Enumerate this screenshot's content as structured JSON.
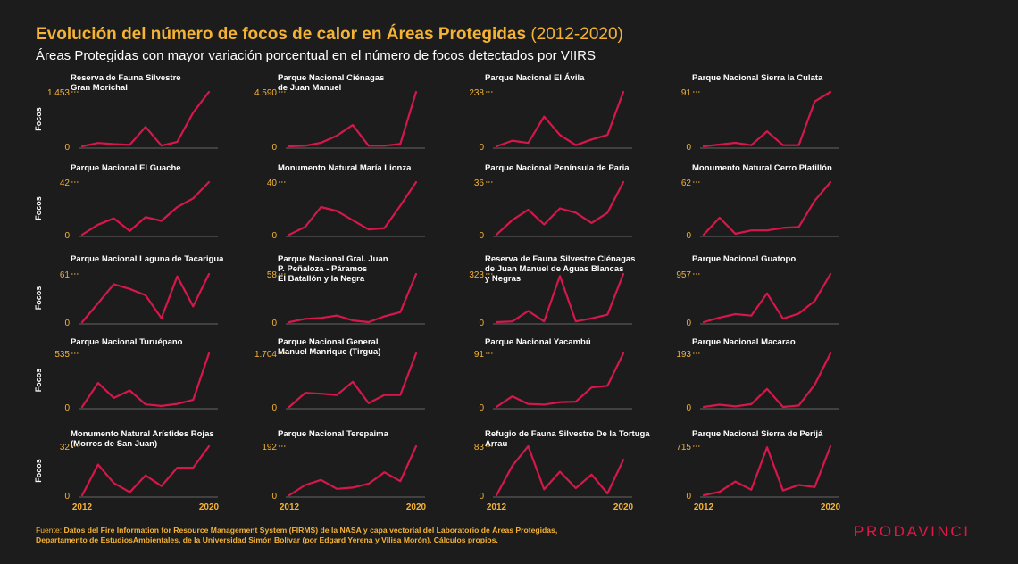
{
  "header": {
    "title_main": "Evolución del número de focos de calor en Áreas Protegidas",
    "title_span": "(2012-2020)",
    "subtitle": "Áreas Protegidas con mayor variación porcentual en el número de focos detectados por VIIRS"
  },
  "colors": {
    "background": "#1c1c1c",
    "accent": "#f5b335",
    "line": "#d6174c",
    "baseline": "#666666",
    "logo": "#e0184a"
  },
  "footer": {
    "label": "Fuente:",
    "line1": "Datos del Fire Information for Resource Management System (FIRMS) de la NASA y capa vectorial del Laboratorio de Áreas Protegidas,",
    "line2": "Departamento de EstudiosAmbientales, de la Universidad Simón Bolívar (por Edgard Yerena y Vilisa Morón). Cálculos propios."
  },
  "logo": "PRODAVINCI",
  "chart_data": {
    "type": "line",
    "ylabel": "Focos",
    "x": [
      2012,
      2013,
      2014,
      2015,
      2016,
      2017,
      2018,
      2019,
      2020
    ],
    "x_tick_labels": [
      "2012",
      "2020"
    ],
    "grid": false,
    "panels": [
      {
        "name_lines": [
          "Reserva de Fauna Silvestre",
          "Gran Morichal"
        ],
        "ymax_label": "1.453",
        "ymax": 1453,
        "values": [
          0,
          90,
          60,
          40,
          520,
          20,
          120,
          900,
          1453
        ]
      },
      {
        "name_lines": [
          "Parque Nacional Ciénagas",
          "de Juan Manuel"
        ],
        "ymax_label": "4.590",
        "ymax": 4590,
        "values": [
          0,
          50,
          300,
          900,
          1800,
          50,
          50,
          200,
          4590
        ]
      },
      {
        "name_lines": [
          "Parque Nacional El Ávila"
        ],
        "ymax_label": "238",
        "ymax": 238,
        "values": [
          0,
          25,
          15,
          130,
          50,
          5,
          30,
          50,
          238
        ]
      },
      {
        "name_lines": [
          "Parque Nacional Sierra la Culata"
        ],
        "ymax_label": "91",
        "ymax": 91,
        "values": [
          0,
          3,
          6,
          2,
          25,
          2,
          2,
          75,
          91
        ]
      },
      {
        "name_lines": [
          "Parque Nacional El Guache"
        ],
        "ymax_label": "42",
        "ymax": 42,
        "values": [
          0,
          8,
          13,
          3,
          14,
          11,
          22,
          29,
          42
        ]
      },
      {
        "name_lines": [
          "Monumento Natural María Lionza"
        ],
        "ymax_label": "40",
        "ymax": 40,
        "values": [
          0,
          6,
          21,
          18,
          11,
          4,
          5,
          22,
          40
        ]
      },
      {
        "name_lines": [
          "Parque Nacional Península de Paria"
        ],
        "ymax_label": "36",
        "ymax": 36,
        "values": [
          0,
          10,
          17,
          7,
          18,
          15,
          8,
          15,
          36
        ]
      },
      {
        "name_lines": [
          "Monumento Natural Cerro Platillón"
        ],
        "ymax_label": "62",
        "ymax": 62,
        "values": [
          0,
          20,
          1,
          5,
          5,
          8,
          9,
          40,
          62
        ]
      },
      {
        "name_lines": [
          "Parque Nacional Laguna de Tacarigua"
        ],
        "ymax_label": "61",
        "ymax": 61,
        "values": [
          0,
          24,
          48,
          42,
          34,
          5,
          58,
          20,
          61
        ]
      },
      {
        "name_lines": [
          "Parque Nacional Gral. Juan",
          "P. Peñaloza - Páramos",
          "El Batallón y la Negra"
        ],
        "ymax_label": "58",
        "ymax": 58,
        "values": [
          0,
          4,
          5,
          8,
          2,
          0,
          7,
          12,
          58
        ]
      },
      {
        "name_lines": [
          "Reserva de Fauna Silvestre Ciénagas",
          "de Juan Manuel de Aguas Blancas",
          "y Negras"
        ],
        "ymax_label": "323",
        "ymax": 323,
        "values": [
          0,
          5,
          75,
          5,
          310,
          5,
          25,
          50,
          323
        ]
      },
      {
        "name_lines": [
          "Parque Nacional Guatopo"
        ],
        "ymax_label": "957",
        "ymax": 957,
        "values": [
          0,
          90,
          160,
          130,
          570,
          70,
          170,
          420,
          957
        ]
      },
      {
        "name_lines": [
          "Parque Nacional Turuépano"
        ],
        "ymax_label": "535",
        "ymax": 535,
        "values": [
          0,
          240,
          90,
          165,
          25,
          10,
          30,
          70,
          535
        ]
      },
      {
        "name_lines": [
          "Parque Nacional General",
          "Manuel Manrique (Tirgua)"
        ],
        "ymax_label": "1.704",
        "ymax": 1704,
        "values": [
          0,
          450,
          420,
          380,
          800,
          120,
          380,
          380,
          1704
        ]
      },
      {
        "name_lines": [
          "Parque Nacional Yacambú"
        ],
        "ymax_label": "91",
        "ymax": 91,
        "values": [
          0,
          18,
          5,
          4,
          8,
          9,
          33,
          36,
          91
        ]
      },
      {
        "name_lines": [
          "Parque Nacional Macarao"
        ],
        "ymax_label": "193",
        "ymax": 193,
        "values": [
          0,
          8,
          2,
          10,
          65,
          0,
          5,
          80,
          193
        ]
      },
      {
        "name_lines": [
          "Monumento Natural Arístides Rojas",
          "(Morros de San Juan)"
        ],
        "ymax_label": "32",
        "ymax": 32,
        "values": [
          0,
          20,
          8,
          2,
          13,
          6,
          18,
          18,
          32
        ]
      },
      {
        "name_lines": [
          "Parque Nacional Terepaima"
        ],
        "ymax_label": "192",
        "ymax": 192,
        "values": [
          0,
          40,
          60,
          25,
          30,
          45,
          90,
          55,
          192
        ]
      },
      {
        "name_lines": [
          "Refugio de Fauna Silvestre De la Tortuga",
          "Arrau"
        ],
        "ymax_label": "83",
        "ymax": 83,
        "values": [
          0,
          50,
          83,
          10,
          40,
          12,
          35,
          3,
          60
        ]
      },
      {
        "name_lines": [
          "Parque Nacional Sierra de Perijá"
        ],
        "ymax_label": "715",
        "ymax": 715,
        "values": [
          0,
          50,
          200,
          80,
          700,
          70,
          150,
          120,
          715
        ]
      }
    ]
  }
}
